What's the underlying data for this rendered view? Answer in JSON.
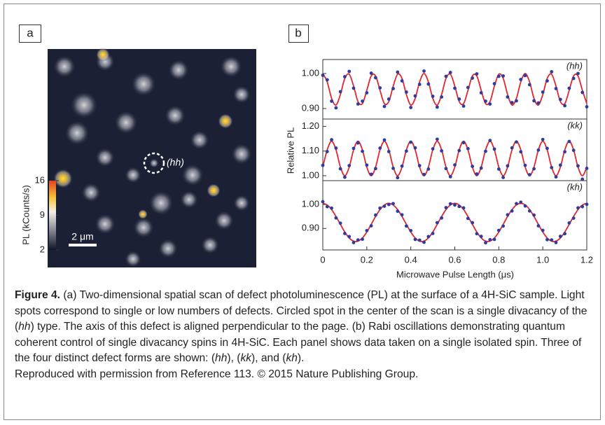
{
  "figure": {
    "panel_a": {
      "label": "a",
      "annotation": "(hh)",
      "scale_bar": "2 μm",
      "colorbar": {
        "title": "PL (kCounts/s)",
        "clim": [
          2,
          16
        ],
        "ticks": [
          16,
          9,
          2
        ]
      }
    },
    "panel_b": {
      "label": "b",
      "ylabel": "Relative PL",
      "xlabel": "Microwave Pulse Length (μs)",
      "xlim": [
        0,
        1.2
      ],
      "xticks": [
        0,
        0.2,
        0.4,
        0.6,
        0.8,
        {
          "value": 1,
          "label": "1.0"
        },
        1.2
      ],
      "x": [
        0,
        0.02,
        0.04,
        0.06,
        0.08,
        0.1,
        0.12,
        0.14,
        0.16,
        0.18,
        0.2,
        0.22,
        0.24,
        0.26,
        0.28,
        0.3,
        0.32,
        0.34,
        0.36,
        0.38,
        0.4,
        0.42,
        0.44,
        0.46,
        0.48,
        0.5,
        0.52,
        0.54,
        0.56,
        0.58,
        0.6,
        0.62,
        0.64,
        0.66,
        0.68,
        0.7,
        0.72,
        0.74,
        0.76,
        0.78,
        0.8,
        0.82,
        0.84,
        0.86,
        0.88,
        0.9,
        0.92,
        0.94,
        0.96,
        0.98,
        1,
        1.02,
        1.04,
        1.06,
        1.08,
        1.1,
        1.12,
        1.14,
        1.16,
        1.18,
        1.2
      ],
      "data_color": "#2d3c9e",
      "fit_color": "#e3262c",
      "subplots": [
        {
          "annotation": "(hh)",
          "ylim": [
            0.87,
            1.04
          ],
          "yticks": [
            {
              "value": 0.9,
              "label": "0.90"
            },
            {
              "value": 1,
              "label": "1.00"
            }
          ],
          "fit": [
            1,
            0.976,
            0.929,
            0.91,
            0.94,
            0.986,
            0.998,
            0.964,
            0.92,
            0.914,
            0.952,
            0.993,
            0.993,
            0.952,
            0.914,
            0.92,
            0.964,
            0.998,
            0.986,
            0.94,
            0.91,
            0.929,
            0.976,
            1,
            0.976,
            0.929,
            0.91,
            0.94,
            0.986,
            0.998,
            0.964,
            0.92,
            0.914,
            0.952,
            0.993,
            0.993,
            0.952,
            0.914,
            0.92,
            0.964,
            0.998,
            0.986,
            0.94,
            0.91,
            0.929,
            0.976,
            1,
            0.976,
            0.929,
            0.91,
            0.94,
            0.986,
            0.998,
            0.964,
            0.92,
            0.914,
            0.952,
            0.993,
            0.993,
            0.952,
            0.914
          ],
          "data": [
            0.995,
            0.982,
            0.921,
            0.902,
            0.948,
            0.991,
            1.006,
            0.958,
            0.913,
            0.921,
            0.945,
            1.001,
            0.988,
            0.959,
            0.906,
            0.927,
            0.957,
            1.004,
            0.979,
            0.947,
            0.903,
            0.936,
            0.969,
            1.007,
            0.97,
            0.935,
            0.904,
            0.933,
            0.992,
            1.003,
            0.958,
            0.927,
            0.907,
            0.96,
            0.987,
            0.999,
            0.945,
            0.921,
            0.913,
            0.971,
            0.992,
            0.993,
            0.933,
            0.917,
            0.922,
            0.983,
            0.994,
            0.968,
            0.922,
            0.916,
            0.947,
            0.979,
            1.005,
            0.957,
            0.926,
            0.908,
            0.958,
            0.986,
            1,
            0.946,
            0.905
          ]
        },
        {
          "annotation": "(kk)",
          "ylim": [
            0.98,
            1.23
          ],
          "yticks": [
            {
              "value": 1,
              "label": "1.00"
            },
            {
              "value": 1.1,
              "label": "1.10"
            },
            {
              "value": 1.2,
              "label": "1.20"
            }
          ],
          "fit": [
            1.035,
            1.105,
            1.14,
            1.105,
            1.035,
            1,
            1.035,
            1.105,
            1.14,
            1.105,
            1.035,
            1,
            1.035,
            1.105,
            1.14,
            1.105,
            1.035,
            1,
            1.035,
            1.105,
            1.14,
            1.105,
            1.035,
            1,
            1.035,
            1.105,
            1.14,
            1.105,
            1.035,
            1,
            1.035,
            1.105,
            1.14,
            1.105,
            1.035,
            1,
            1.035,
            1.105,
            1.14,
            1.105,
            1.035,
            1,
            1.035,
            1.105,
            1.14,
            1.105,
            1.035,
            1,
            1.035,
            1.105,
            1.14,
            1.105,
            1.035,
            1,
            1.035,
            1.105,
            1.14,
            1.105,
            1.035,
            1,
            1.035
          ],
          "data": [
            1.042,
            1.098,
            1.146,
            1.112,
            1.028,
            0.994,
            1.041,
            1.111,
            1.133,
            1.099,
            1.043,
            1.006,
            1.029,
            1.112,
            1.145,
            1.098,
            1.03,
            0.992,
            1.039,
            1.1,
            1.136,
            1.113,
            1.041,
            1.005,
            1.027,
            1.109,
            1.148,
            1.101,
            1.029,
            0.996,
            1.044,
            1.102,
            1.134,
            1.11,
            1.038,
            1.007,
            1.031,
            1.099,
            1.143,
            1.108,
            1.027,
            0.993,
            1.04,
            1.113,
            1.137,
            1.097,
            1.042,
            1.004,
            1.028,
            1.104,
            1.147,
            1.111,
            1.033,
            0.995,
            1.043,
            1.097,
            1.139,
            1.103,
            1.04,
            0.986,
            1.03
          ]
        },
        {
          "annotation": "(kh)",
          "ylim": [
            0.81,
            1.1
          ],
          "yticks": [
            {
              "value": 0.9,
              "label": "0.90"
            },
            {
              "value": 1,
              "label": "1.00"
            }
          ],
          "fit": [
            1.005,
            0.998,
            0.979,
            0.95,
            0.917,
            0.885,
            0.86,
            0.847,
            0.847,
            0.86,
            0.885,
            0.917,
            0.95,
            0.979,
            0.998,
            1.005,
            0.998,
            0.979,
            0.95,
            0.917,
            0.885,
            0.86,
            0.847,
            0.847,
            0.86,
            0.885,
            0.917,
            0.95,
            0.979,
            0.998,
            1.005,
            0.998,
            0.979,
            0.95,
            0.917,
            0.885,
            0.86,
            0.847,
            0.847,
            0.86,
            0.885,
            0.917,
            0.95,
            0.979,
            0.998,
            1.005,
            0.998,
            0.979,
            0.95,
            0.917,
            0.885,
            0.86,
            0.847,
            0.847,
            0.86,
            0.885,
            0.917,
            0.95,
            0.979,
            0.998,
            1.005
          ],
          "data": [
            1.012,
            0.991,
            0.985,
            0.944,
            0.922,
            0.879,
            0.866,
            0.841,
            0.852,
            0.855,
            0.891,
            0.911,
            0.956,
            0.985,
            0.993,
            1,
            1.004,
            0.972,
            0.957,
            0.91,
            0.891,
            0.854,
            0.851,
            0.842,
            0.866,
            0.879,
            0.924,
            0.944,
            0.987,
            1.003,
            0.998,
            0.992,
            0.986,
            0.942,
            0.924,
            0.878,
            0.867,
            0.84,
            0.853,
            0.854,
            0.892,
            0.91,
            0.957,
            0.973,
            1.004,
            1.01,
            0.994,
            0.973,
            0.956,
            0.911,
            0.892,
            0.853,
            0.852,
            0.841,
            0.867,
            0.878,
            0.923,
            0.943,
            0.986,
            0.991,
            1.001
          ]
        }
      ]
    },
    "caption": [
      "Figure 4.",
      " (a) Two-dimensional spatial scan of defect photoluminescence (PL) at the surface of a 4H-SiC sample. Light spots correspond to single or low numbers of defects. Circled spot in the center of the scan is a single divacancy of the (",
      "hh",
      ") type. The axis of this defect is aligned perpendicular to the page. (b) Rabi oscillations demonstrating quantum coherent control of single divacancy spins in 4H-SiC. Each panel shows data taken on a single isolated spin. Three of the four distinct defect forms are shown: (",
      "hh",
      "), (",
      "kk",
      "), and (",
      "kh",
      ").",
      "Reproduced with permission from Reference 113. © 2015 Nature Publishing Group."
    ]
  }
}
